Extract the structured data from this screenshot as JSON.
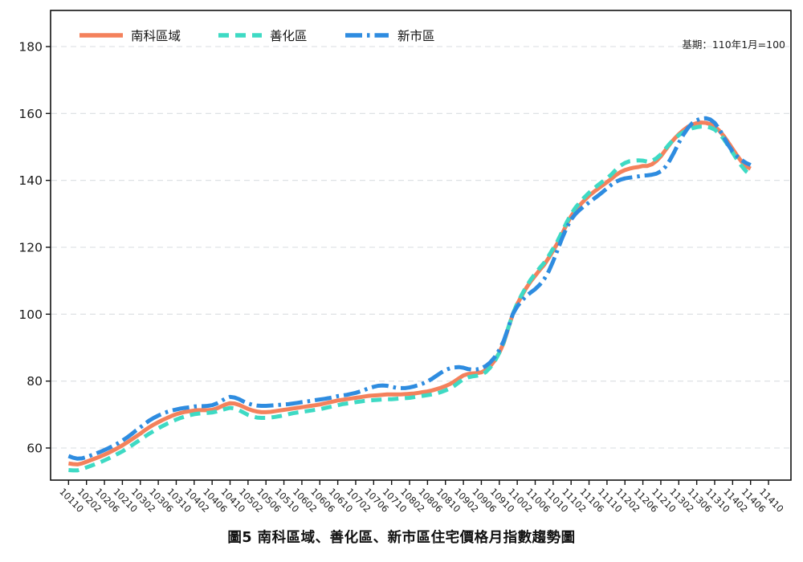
{
  "figure": {
    "title": "圖5 南科區域、善化區、新市區住宅價格月指數趨勢圖",
    "annotation": "基期：110年1月=100"
  },
  "chart_data": {
    "type": "line",
    "title": "圖5 南科區域、善化區、新市區住宅價格月指數趨勢圖",
    "annotation": "基期：110年1月=100",
    "x_unit": "ROC year-month code (YYYMM), monthly points",
    "x_start": "10110",
    "x_end": "11406",
    "x_tick_step_months": 4,
    "x_tick_labels": [
      "10110",
      "10202",
      "10206",
      "10210",
      "10302",
      "10306",
      "10310",
      "10402",
      "10406",
      "10410",
      "10502",
      "10506",
      "10510",
      "10602",
      "10606",
      "10610",
      "10702",
      "10706",
      "10710",
      "10802",
      "10806",
      "10810",
      "10902",
      "10906",
      "10910",
      "11002",
      "11006",
      "11010",
      "11102",
      "11106",
      "11110",
      "11202",
      "11206",
      "11210",
      "11302",
      "11306",
      "11310",
      "11402",
      "11406",
      "11410"
    ],
    "ylim": [
      50.4,
      190.8
    ],
    "yticks": [
      60,
      80,
      100,
      120,
      140,
      160,
      180
    ],
    "grid": "horizontal dashed",
    "legend_position": "top-left inside",
    "colors": {
      "nanke": "#F4815C",
      "shanhua": "#3EDAC4",
      "xinshi": "#2E8CE0"
    },
    "series": [
      {
        "name": "南科區域",
        "color": "#F4815C",
        "style": "solid",
        "values": [
          55.4,
          55.2,
          55.1,
          55.4,
          55.9,
          56.4,
          56.9,
          57.4,
          58.0,
          58.6,
          59.3,
          60.0,
          60.8,
          61.6,
          62.5,
          63.4,
          64.3,
          65.3,
          66.2,
          67.0,
          67.7,
          68.4,
          69.0,
          69.6,
          70.1,
          70.5,
          70.8,
          71.0,
          71.2,
          71.3,
          71.3,
          71.3,
          71.4,
          71.8,
          72.4,
          73.0,
          73.4,
          73.3,
          72.9,
          72.3,
          71.7,
          71.2,
          70.9,
          70.7,
          70.7,
          70.8,
          71.0,
          71.2,
          71.4,
          71.6,
          71.8,
          72.0,
          72.2,
          72.4,
          72.6,
          72.8,
          73.0,
          73.3,
          73.6,
          73.9,
          74.2,
          74.4,
          74.6,
          74.8,
          75.0,
          75.2,
          75.4,
          75.6,
          75.7,
          75.8,
          75.9,
          76.0,
          76.0,
          76.0,
          76.0,
          76.1,
          76.2,
          76.3,
          76.5,
          76.7,
          76.9,
          77.2,
          77.6,
          78.0,
          78.5,
          79.1,
          79.9,
          80.8,
          81.7,
          82.1,
          82.3,
          82.4,
          82.6,
          83.3,
          84.5,
          86.2,
          88.5,
          91.5,
          95.8,
          100.0,
          103.0,
          105.5,
          107.8,
          109.8,
          111.5,
          113.2,
          114.8,
          116.8,
          119.0,
          121.3,
          124.0,
          126.8,
          129.3,
          131.2,
          132.7,
          134.1,
          135.4,
          136.5,
          137.5,
          138.5,
          139.5,
          140.5,
          141.6,
          142.5,
          143.1,
          143.5,
          143.8,
          144.0,
          144.3,
          144.3,
          144.8,
          145.8,
          147.2,
          149.0,
          150.8,
          152.4,
          153.8,
          155.0,
          156.0,
          156.7,
          157.1,
          157.3,
          157.2,
          156.8,
          156.1,
          154.9,
          153.3,
          151.4,
          149.4,
          147.4,
          145.6,
          144.2,
          143.5
        ]
      },
      {
        "name": "善化區",
        "color": "#3EDAC4",
        "style": "dashed",
        "values": [
          53.4,
          53.3,
          53.3,
          53.7,
          54.2,
          54.7,
          55.2,
          55.7,
          56.3,
          56.9,
          57.6,
          58.3,
          59.0,
          59.8,
          60.7,
          61.6,
          62.5,
          63.4,
          64.3,
          65.1,
          65.9,
          66.6,
          67.3,
          67.9,
          68.5,
          69.0,
          69.4,
          69.8,
          70.1,
          70.3,
          70.4,
          70.5,
          70.6,
          70.9,
          71.3,
          71.7,
          72.0,
          71.8,
          71.3,
          70.6,
          69.9,
          69.4,
          69.1,
          69.0,
          69.0,
          69.1,
          69.3,
          69.5,
          69.8,
          70.1,
          70.4,
          70.6,
          70.8,
          71.0,
          71.2,
          71.4,
          71.6,
          71.9,
          72.2,
          72.5,
          72.8,
          73.1,
          73.3,
          73.5,
          73.7,
          73.9,
          74.1,
          74.2,
          74.3,
          74.4,
          74.5,
          74.6,
          74.6,
          74.7,
          74.8,
          74.9,
          75.0,
          75.2,
          75.4,
          75.6,
          75.8,
          76.0,
          76.3,
          76.7,
          77.2,
          77.8,
          78.6,
          79.6,
          80.6,
          81.1,
          81.4,
          81.6,
          81.9,
          82.7,
          84.1,
          86.0,
          88.5,
          91.7,
          96.0,
          100.0,
          103.2,
          105.8,
          108.2,
          110.3,
          112.1,
          113.8,
          115.4,
          117.4,
          119.6,
          121.9,
          124.6,
          127.4,
          129.9,
          131.9,
          133.5,
          135.0,
          136.3,
          137.5,
          138.6,
          139.6,
          140.6,
          141.8,
          143.2,
          144.4,
          145.2,
          145.7,
          145.9,
          146.0,
          145.9,
          145.6,
          145.8,
          146.6,
          147.8,
          149.4,
          151.0,
          152.4,
          153.5,
          154.4,
          155.1,
          155.6,
          155.9,
          156.1,
          156.1,
          155.8,
          155.2,
          154.0,
          152.4,
          150.4,
          148.3,
          146.2,
          144.3,
          142.7,
          141.7
        ]
      },
      {
        "name": "新市區",
        "color": "#2E8CE0",
        "style": "dash-dot",
        "values": [
          57.6,
          57.1,
          56.8,
          56.9,
          57.3,
          57.8,
          58.3,
          58.8,
          59.4,
          60.0,
          60.7,
          61.4,
          62.2,
          63.1,
          64.1,
          65.2,
          66.2,
          67.2,
          68.2,
          69.0,
          69.7,
          70.3,
          70.8,
          71.2,
          71.5,
          71.8,
          72.0,
          72.2,
          72.4,
          72.5,
          72.5,
          72.6,
          72.8,
          73.3,
          74.0,
          74.8,
          75.3,
          75.1,
          74.6,
          73.9,
          73.3,
          72.9,
          72.7,
          72.6,
          72.6,
          72.7,
          72.8,
          72.9,
          73.0,
          73.1,
          73.3,
          73.5,
          73.7,
          73.9,
          74.1,
          74.3,
          74.5,
          74.7,
          74.9,
          75.2,
          75.5,
          75.7,
          75.9,
          76.2,
          76.5,
          76.9,
          77.4,
          77.9,
          78.3,
          78.6,
          78.7,
          78.6,
          78.3,
          78.0,
          77.9,
          77.9,
          78.1,
          78.4,
          78.8,
          79.3,
          79.9,
          80.7,
          81.6,
          82.5,
          83.3,
          83.8,
          84.1,
          84.2,
          84.0,
          83.6,
          83.4,
          83.5,
          83.8,
          84.5,
          85.6,
          87.2,
          89.3,
          92.1,
          96.0,
          100.0,
          102.3,
          104.0,
          105.4,
          106.5,
          107.5,
          108.8,
          110.5,
          112.8,
          115.8,
          119.2,
          122.7,
          125.8,
          128.3,
          130.0,
          131.3,
          132.4,
          133.4,
          134.4,
          135.4,
          136.5,
          137.6,
          138.7,
          139.6,
          140.2,
          140.6,
          140.8,
          141.0,
          141.2,
          141.4,
          141.5,
          141.7,
          142.0,
          142.7,
          144.0,
          146.0,
          148.5,
          151.2,
          153.6,
          155.6,
          157.1,
          158.0,
          158.5,
          158.6,
          158.2,
          157.2,
          155.4,
          153.0,
          150.6,
          148.6,
          147.2,
          146.1,
          145.2,
          144.6
        ]
      }
    ]
  }
}
